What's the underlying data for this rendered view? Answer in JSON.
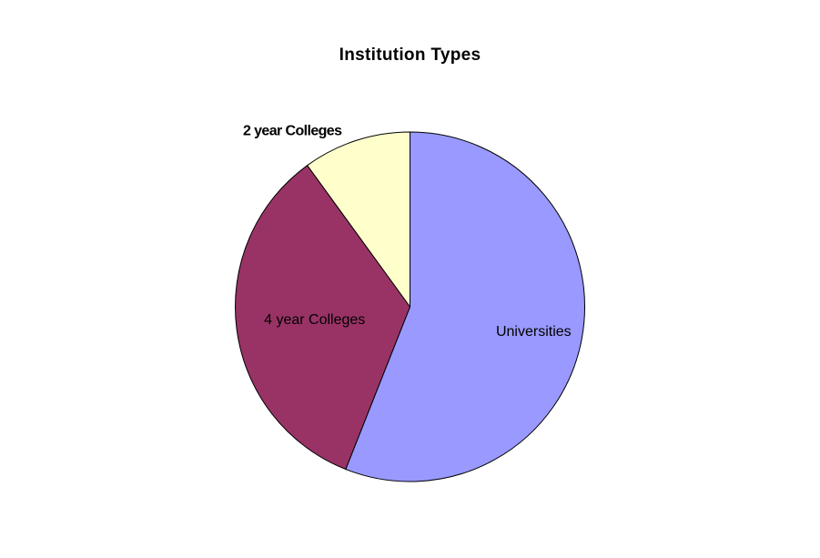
{
  "chart_data": {
    "type": "pie",
    "title": "Institution Types",
    "categories": [
      "Universities",
      "4 year Colleges",
      "2 year Colleges"
    ],
    "values": [
      56,
      34,
      10
    ],
    "colors": [
      "#9999ff",
      "#993366",
      "#ffffcc"
    ],
    "start_angle": "12 o'clock",
    "direction": "clockwise",
    "legend": "none",
    "labels_on_slices": true
  }
}
